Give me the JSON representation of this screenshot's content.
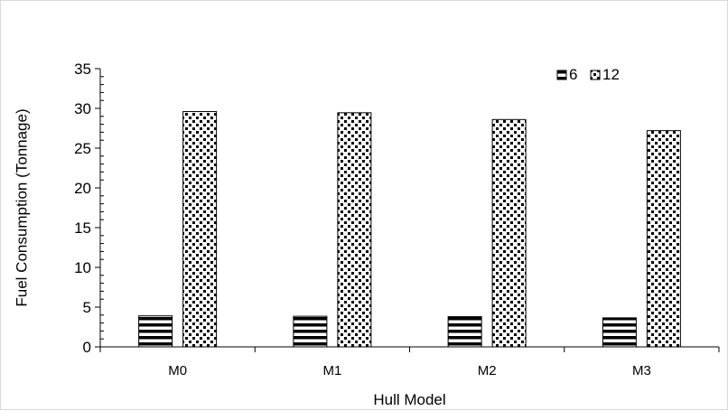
{
  "chart_data": {
    "type": "bar",
    "title": "",
    "xlabel": "Hull Model",
    "ylabel": "Fuel Consumption  (Tonnage)",
    "categories": [
      "M0",
      "M1",
      "M2",
      "M3"
    ],
    "series": [
      {
        "name": "6",
        "values": [
          3.9,
          3.85,
          3.8,
          3.65
        ],
        "pattern": "horizontal-stripes"
      },
      {
        "name": "12",
        "values": [
          29.6,
          29.45,
          28.6,
          27.2
        ],
        "pattern": "dotted-checker"
      }
    ],
    "ylim": [
      0,
      35
    ],
    "yticks": [
      0,
      5,
      10,
      15,
      20,
      25,
      30,
      35
    ],
    "grid": false,
    "legend_position": "top-right",
    "colors": {
      "ink": "#000000",
      "background": "#ffffff",
      "frame": "#d9d9d9"
    }
  }
}
